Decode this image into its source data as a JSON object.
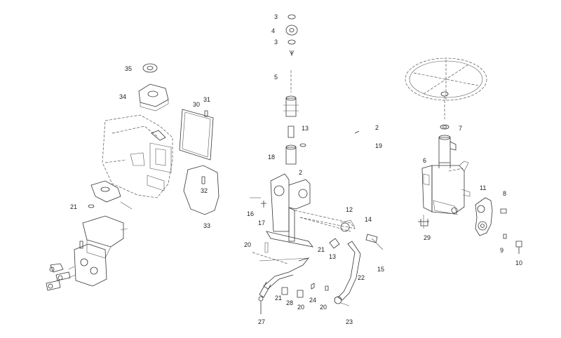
{
  "callouts": {
    "c3a": "3",
    "c4": "4",
    "c3b": "3",
    "c5": "5",
    "c35": "35",
    "c34": "34",
    "c31": "31",
    "c30": "30",
    "c32": "32",
    "c33": "33",
    "c21a": "21",
    "c13a": "13",
    "c18": "18",
    "c2a": "2",
    "c19": "19",
    "c2b": "2",
    "c12": "12",
    "c14": "14",
    "c16": "16",
    "c17": "17",
    "c20a": "20",
    "c21b": "21",
    "c13b": "13",
    "c15": "15",
    "c22": "22",
    "c21c": "21",
    "c28": "28",
    "c20b": "20",
    "c24": "24",
    "c20c": "20",
    "c27": "27",
    "c23": "23",
    "c7": "7",
    "c6": "6",
    "c11": "11",
    "c8": "8",
    "c29": "29",
    "c9": "9",
    "c10": "10"
  }
}
